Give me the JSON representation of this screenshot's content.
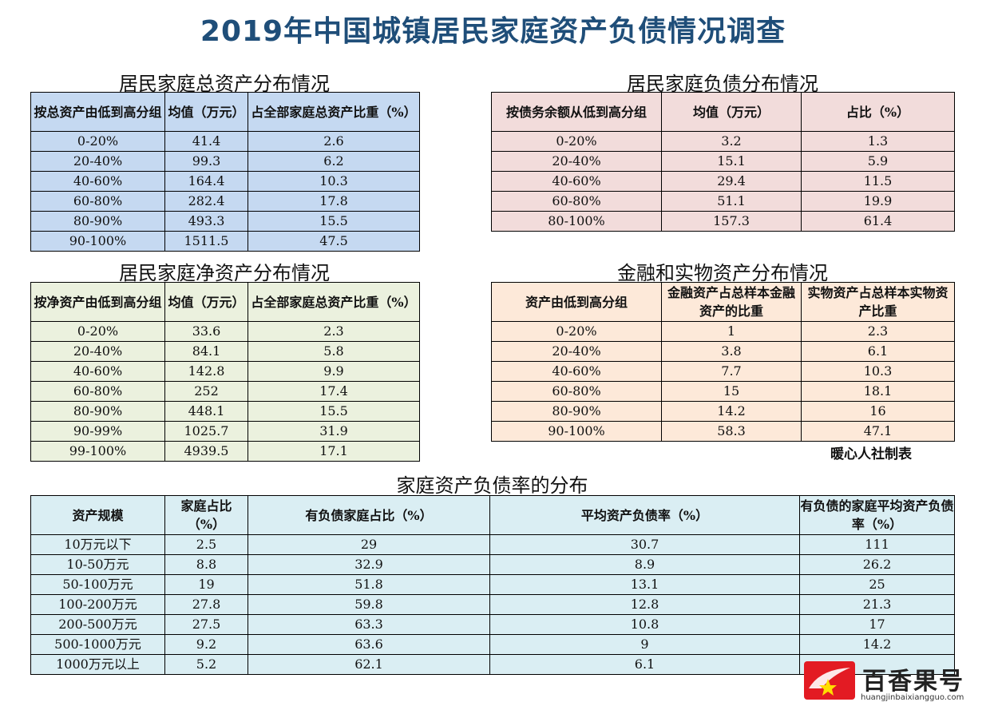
{
  "title": "2019年中国城镇居民家庭资产负债情况调查",
  "total_assets": {
    "title": "居民家庭总资产分布情况",
    "headers": [
      "按总资产由低到高分组",
      "均值（万元）",
      "占全部家庭总资产比重（%）"
    ],
    "rows": [
      [
        "0-20%",
        "41.4",
        "2.6"
      ],
      [
        "20-40%",
        "99.3",
        "6.2"
      ],
      [
        "40-60%",
        "164.4",
        "10.3"
      ],
      [
        "60-80%",
        "282.4",
        "17.8"
      ],
      [
        "80-90%",
        "493.3",
        "15.5"
      ],
      [
        "90-100%",
        "1511.5",
        "47.5"
      ]
    ]
  },
  "liabilities": {
    "title": "居民家庭负债分布情况",
    "headers": [
      "按债务余额从低到高分组",
      "均值（万元）",
      "占比（%）"
    ],
    "rows": [
      [
        "0-20%",
        "3.2",
        "1.3"
      ],
      [
        "20-40%",
        "15.1",
        "5.9"
      ],
      [
        "40-60%",
        "29.4",
        "11.5"
      ],
      [
        "60-80%",
        "51.1",
        "19.9"
      ],
      [
        "80-100%",
        "157.3",
        "61.4"
      ]
    ]
  },
  "net_assets": {
    "title": "居民家庭净资产分布情况",
    "headers": [
      "按净资产由低到高分组",
      "均值（万元）",
      "占全部家庭总资产比重（%）"
    ],
    "rows": [
      [
        "0-20%",
        "33.6",
        "2.3"
      ],
      [
        "20-40%",
        "84.1",
        "5.8"
      ],
      [
        "40-60%",
        "142.8",
        "9.9"
      ],
      [
        "60-80%",
        "252",
        "17.4"
      ],
      [
        "80-90%",
        "448.1",
        "15.5"
      ],
      [
        "90-99%",
        "1025.7",
        "31.9"
      ],
      [
        "99-100%",
        "4939.5",
        "17.1"
      ]
    ]
  },
  "financial_physical": {
    "title": "金融和实物资产分布情况",
    "headers": [
      "资产由低到高分组",
      "金融资产占总样本金融资产的比重",
      "实物资产占总样本实物资产比重"
    ],
    "rows": [
      [
        "0-20%",
        "1",
        "2.3"
      ],
      [
        "20-40%",
        "3.8",
        "6.1"
      ],
      [
        "40-60%",
        "7.7",
        "10.3"
      ],
      [
        "60-80%",
        "15",
        "18.1"
      ],
      [
        "80-90%",
        "14.2",
        "16"
      ],
      [
        "90-100%",
        "58.3",
        "47.1"
      ]
    ]
  },
  "note": "暖心人社制表",
  "debt_ratio": {
    "title": "家庭资产负债率的分布",
    "headers": [
      "资产规模",
      "家庭占比（%）",
      "有负债家庭占比（%）",
      "平均资产负债率（%）",
      "有负债的家庭平均资产负债率（%）"
    ],
    "rows": [
      [
        "10万元以下",
        "2.5",
        "29",
        "30.7",
        "111"
      ],
      [
        "10-50万元",
        "8.8",
        "32.9",
        "8.9",
        "26.2"
      ],
      [
        "50-100万元",
        "19",
        "51.8",
        "13.1",
        "25"
      ],
      [
        "100-200万元",
        "27.8",
        "59.8",
        "12.8",
        "21.3"
      ],
      [
        "200-500万元",
        "27.5",
        "63.3",
        "10.8",
        "17"
      ],
      [
        "500-1000万元",
        "9.2",
        "63.6",
        "9",
        "14.2"
      ],
      [
        "1000万元以上",
        "5.2",
        "62.1",
        "6.1",
        ""
      ]
    ]
  },
  "watermark": {
    "name": "百香果号",
    "url": "huangjinbaixiangguo.com"
  },
  "colors": {
    "title": "#1f4e79",
    "blue": "#c5d9f1",
    "pink": "#f2dcdb",
    "green": "#ebf1de",
    "peach": "#fde9d9",
    "cyan": "#daeef3",
    "logo_red": "#e31b23"
  }
}
